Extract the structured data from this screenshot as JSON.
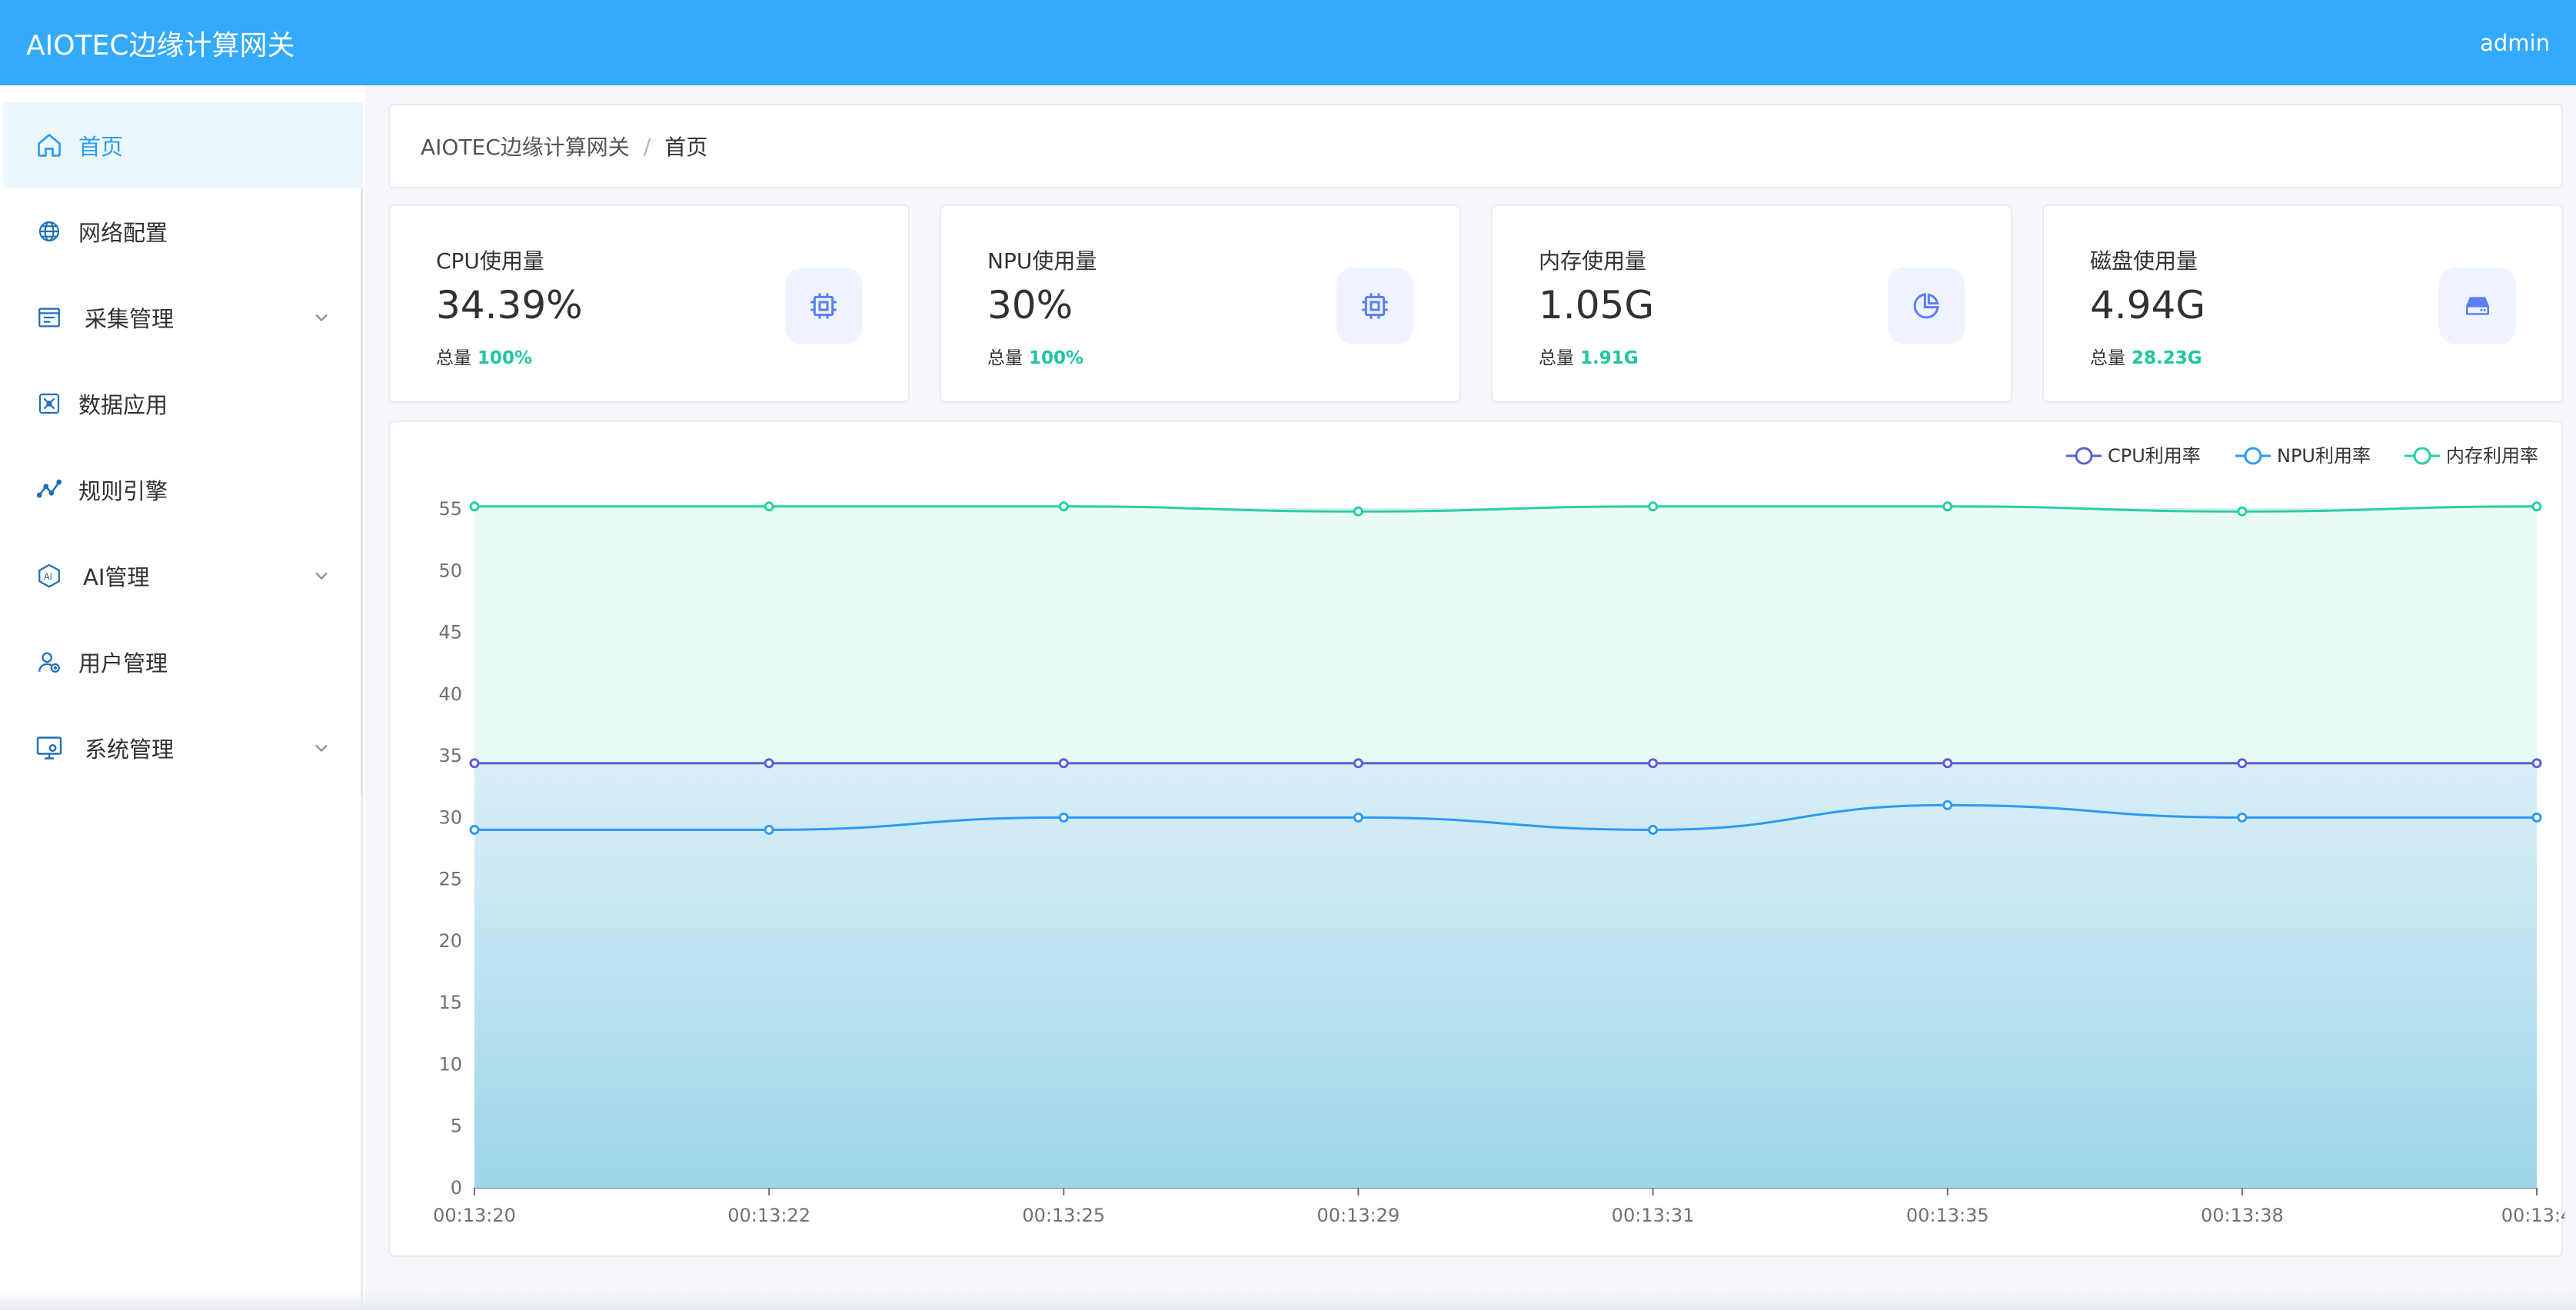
{
  "header": {
    "title": "AIOTEC边缘计算网关",
    "user": "admin"
  },
  "sidebar": {
    "items": [
      {
        "label": "首页",
        "icon": "home-icon",
        "active": true,
        "expandable": false
      },
      {
        "label": "网络配置",
        "icon": "globe-icon",
        "active": false,
        "expandable": false
      },
      {
        "label": "采集管理",
        "icon": "collection-icon",
        "active": false,
        "expandable": true
      },
      {
        "label": "数据应用",
        "icon": "data-app-icon",
        "active": false,
        "expandable": false
      },
      {
        "label": "规则引擎",
        "icon": "rule-engine-icon",
        "active": false,
        "expandable": false
      },
      {
        "label": "AI管理",
        "icon": "ai-icon",
        "active": false,
        "expandable": true
      },
      {
        "label": "用户管理",
        "icon": "user-icon",
        "active": false,
        "expandable": false
      },
      {
        "label": "系统管理",
        "icon": "system-icon",
        "active": false,
        "expandable": true
      }
    ]
  },
  "breadcrumb": {
    "root": "AIOTEC边缘计算网关",
    "separator": "/",
    "current": "首页"
  },
  "stats": [
    {
      "label": "CPU使用量",
      "value": "34.39%",
      "total_label": "总量",
      "total_value": "100%",
      "icon": "cpu-icon"
    },
    {
      "label": "NPU使用量",
      "value": "30%",
      "total_label": "总量",
      "total_value": "100%",
      "icon": "chip-icon"
    },
    {
      "label": "内存使用量",
      "value": "1.05G",
      "total_label": "总量",
      "total_value": "1.91G",
      "icon": "pie-chart-icon"
    },
    {
      "label": "磁盘使用量",
      "value": "4.94G",
      "total_label": "总量",
      "total_value": "28.23G",
      "icon": "disk-icon"
    }
  ],
  "colors": {
    "header": "#33aafa",
    "active": "#2b9cf3",
    "accent_green": "#20c5a0",
    "cpu": "#5b5fd6",
    "npu": "#2b9cf3",
    "mem": "#26d0a4"
  },
  "chart_data": {
    "type": "line",
    "x": [
      "00:13:20",
      "00:13:22",
      "00:13:25",
      "00:13:29",
      "00:13:31",
      "00:13:35",
      "00:13:38",
      "00:13:4"
    ],
    "series": [
      {
        "name": "CPU利用率",
        "values": [
          34.4,
          34.4,
          34.4,
          34.4,
          34.4,
          34.4,
          34.4,
          34.4
        ]
      },
      {
        "name": "NPU利用率",
        "values": [
          29,
          29,
          30,
          30,
          29,
          31,
          30,
          30
        ]
      },
      {
        "name": "内存利用率",
        "values": [
          55.2,
          55.2,
          55.2,
          54.8,
          55.2,
          55.2,
          54.8,
          55.2
        ]
      }
    ],
    "yticks": [
      0,
      5,
      10,
      15,
      20,
      25,
      30,
      35,
      40,
      45,
      50,
      55
    ],
    "ylim": [
      0,
      55
    ],
    "grid": true,
    "legend": "top-right",
    "area_fill": true
  }
}
